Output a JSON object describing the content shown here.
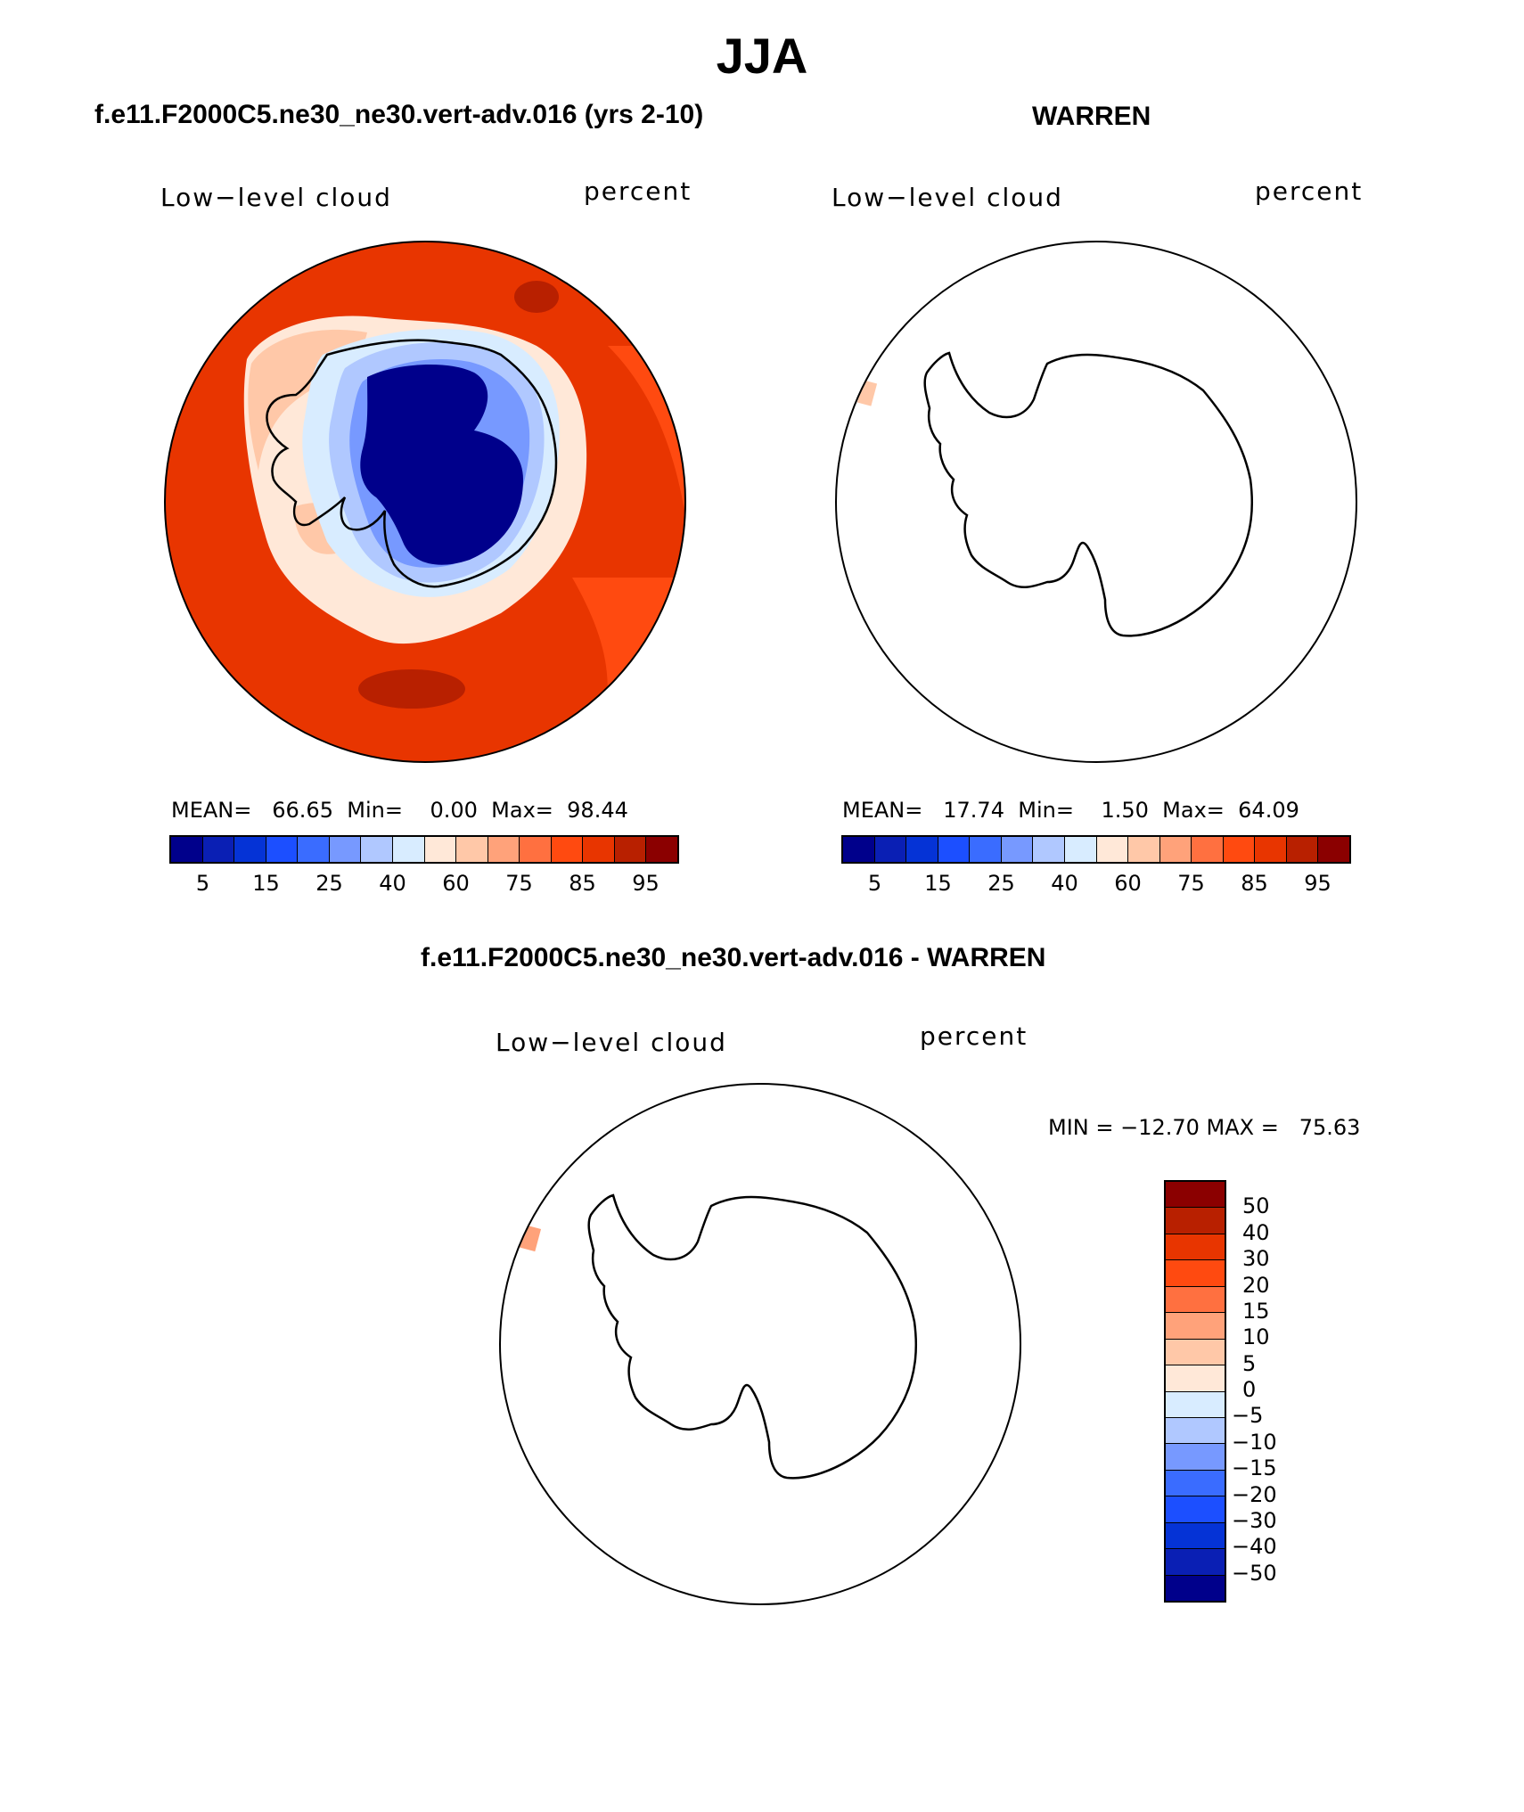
{
  "page": {
    "title": "JJA",
    "diff_title": "f.e11.F2000C5.ne30_ne30.vert-adv.016 - WARREN"
  },
  "panels": [
    {
      "case_title": "f.e11.F2000C5.ne30_ne30.vert-adv.016 (yrs 2-10)",
      "variable": "Low−level cloud",
      "units": "percent",
      "mean_label": "MEAN=",
      "mean": "66.65",
      "min_label": "Min=",
      "min": "0.00",
      "max_label": "Max=",
      "max": "98.44"
    },
    {
      "case_title": "WARREN",
      "variable": "Low−level cloud",
      "units": "percent",
      "mean_label": "MEAN=",
      "mean": "17.74",
      "min_label": "Min=",
      "min": "1.50",
      "max_label": "Max=",
      "max": "64.09"
    },
    {
      "case_title": "",
      "variable": "Low−level cloud",
      "units": "percent",
      "minmax_text": "MIN = −12.70 MAX =   75.63"
    }
  ],
  "colorbar_main": {
    "colors": [
      "#00008b",
      "#0a1fb4",
      "#0533d6",
      "#1c4fff",
      "#3a6cff",
      "#7799ff",
      "#b0c8ff",
      "#d8ecff",
      "#ffe8d8",
      "#ffc8a8",
      "#ffa27a",
      "#ff7040",
      "#ff4a10",
      "#e83500",
      "#b82000",
      "#8b0000"
    ],
    "labels": [
      "5",
      "15",
      "25",
      "40",
      "60",
      "75",
      "85",
      "95"
    ]
  },
  "colorbar_diff": {
    "colors": [
      "#8b0000",
      "#b82000",
      "#e83500",
      "#ff4a10",
      "#ff7040",
      "#ffa27a",
      "#ffc8a8",
      "#ffe8d8",
      "#d8ecff",
      "#b0c8ff",
      "#7799ff",
      "#3a6cff",
      "#1c4fff",
      "#0533d6",
      "#0a1fb4",
      "#00008b"
    ],
    "labels": [
      "50",
      "40",
      "30",
      "20",
      "15",
      "10",
      "5",
      "0",
      "−5",
      "−10",
      "−15",
      "−20",
      "−30",
      "−40",
      "−50"
    ]
  },
  "map_colors": {
    "ocean_base": "#e83500",
    "ocean_light": "#ff4a10",
    "ocean_dark": "#b82000",
    "ice_edge_pale": "#ffe8d8",
    "ice_edge_peach": "#ffc8a8",
    "interior_pale_blue": "#d8ecff",
    "interior_blue": "#b0c8ff",
    "interior_mid_blue": "#7799ff",
    "interior_deep": "#00008b",
    "coast": "#000000",
    "warren_patch": "#ffc8a8",
    "diff_patch": "#ffa27a"
  }
}
